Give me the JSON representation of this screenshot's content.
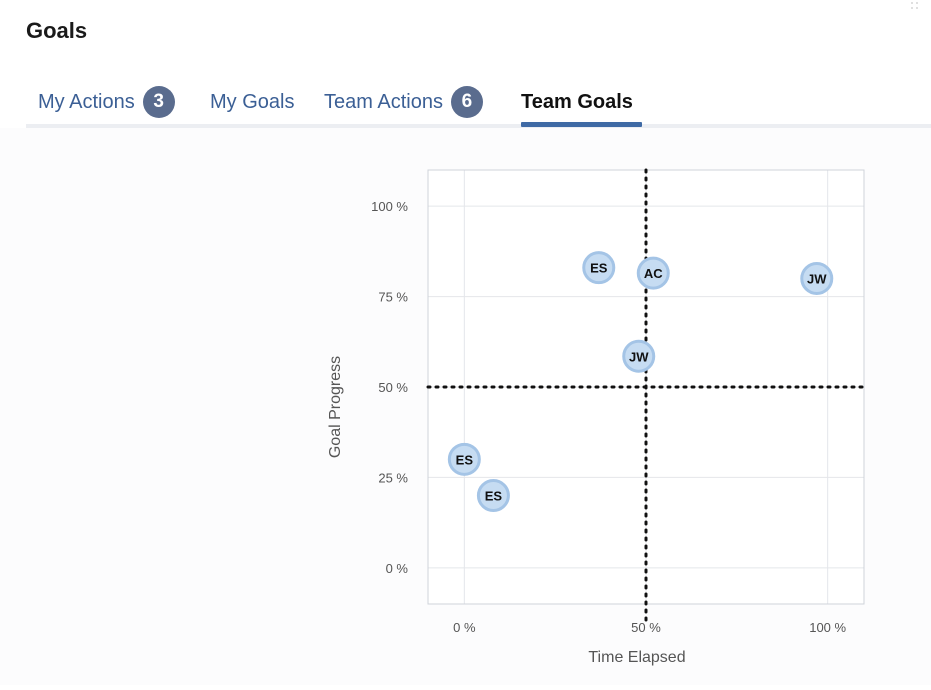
{
  "header": {
    "title": "Goals"
  },
  "tabs": [
    {
      "label": "My Actions",
      "badge": "3",
      "active": false
    },
    {
      "label": "My Goals",
      "badge": "",
      "active": false
    },
    {
      "label": "Team Actions",
      "badge": "6",
      "active": false
    },
    {
      "label": "Team Goals",
      "badge": "",
      "active": true
    }
  ],
  "colors": {
    "accent": "#3f6aa5",
    "tab_text": "#3b5f95",
    "badge_bg": "#5a6c8e",
    "point_fill": "#c6dcf2",
    "point_stroke": "#a4c4e6"
  },
  "chart_data": {
    "type": "scatter",
    "xlabel": "Time Elapsed",
    "ylabel": "Goal Progress",
    "xlim": [
      -10,
      110
    ],
    "ylim": [
      -10,
      110
    ],
    "xticks": [
      0,
      50,
      100
    ],
    "xtick_labels": [
      "0 %",
      "50 %",
      "100 %"
    ],
    "yticks": [
      0,
      25,
      50,
      75,
      100
    ],
    "ytick_labels": [
      "0 %",
      "25 %",
      "50 %",
      "75 %",
      "100 %"
    ],
    "grid": true,
    "reference_lines": {
      "x": 50,
      "y": 50,
      "style": "dotted"
    },
    "points": [
      {
        "label": "ES",
        "x": 37,
        "y": 83
      },
      {
        "label": "AC",
        "x": 52,
        "y": 81.5
      },
      {
        "label": "JW",
        "x": 97,
        "y": 80
      },
      {
        "label": "JW",
        "x": 48,
        "y": 58.5
      },
      {
        "label": "ES",
        "x": 0,
        "y": 30
      },
      {
        "label": "ES",
        "x": 8,
        "y": 20
      }
    ]
  }
}
